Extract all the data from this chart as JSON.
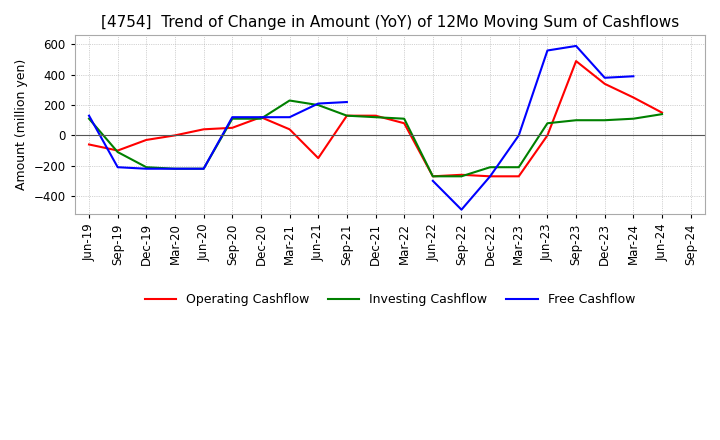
{
  "title": "[4754]  Trend of Change in Amount (YoY) of 12Mo Moving Sum of Cashflows",
  "ylabel": "Amount (million yen)",
  "ylim": [
    -520,
    660
  ],
  "yticks": [
    -400,
    -200,
    0,
    200,
    400,
    600
  ],
  "x_labels": [
    "Jun-19",
    "Sep-19",
    "Dec-19",
    "Mar-20",
    "Jun-20",
    "Sep-20",
    "Dec-20",
    "Mar-21",
    "Jun-21",
    "Sep-21",
    "Dec-21",
    "Mar-22",
    "Jun-22",
    "Sep-22",
    "Dec-22",
    "Mar-23",
    "Jun-23",
    "Sep-23",
    "Dec-23",
    "Mar-24",
    "Jun-24",
    "Sep-24"
  ],
  "operating_cashflow": [
    -60,
    -100,
    -30,
    0,
    40,
    50,
    120,
    40,
    -150,
    130,
    130,
    80,
    -270,
    -260,
    -270,
    -270,
    0,
    490,
    340,
    250,
    150,
    null
  ],
  "investing_cashflow": [
    110,
    -110,
    -210,
    -220,
    -220,
    110,
    110,
    230,
    200,
    130,
    120,
    110,
    -270,
    -270,
    -210,
    -210,
    80,
    100,
    100,
    110,
    140,
    null
  ],
  "free_cashflow": [
    130,
    -210,
    -220,
    -220,
    -220,
    120,
    120,
    120,
    210,
    220,
    null,
    null,
    -300,
    -490,
    -270,
    0,
    560,
    590,
    380,
    390,
    null,
    null
  ],
  "operating_color": "#ff0000",
  "investing_color": "#008000",
  "free_color": "#0000ff",
  "grid_color": "#aaaaaa",
  "zero_line_color": "#555555",
  "background_color": "#ffffff",
  "title_fontsize": 11,
  "axis_label_fontsize": 9,
  "tick_fontsize": 8.5,
  "legend_fontsize": 9,
  "line_width": 1.5
}
